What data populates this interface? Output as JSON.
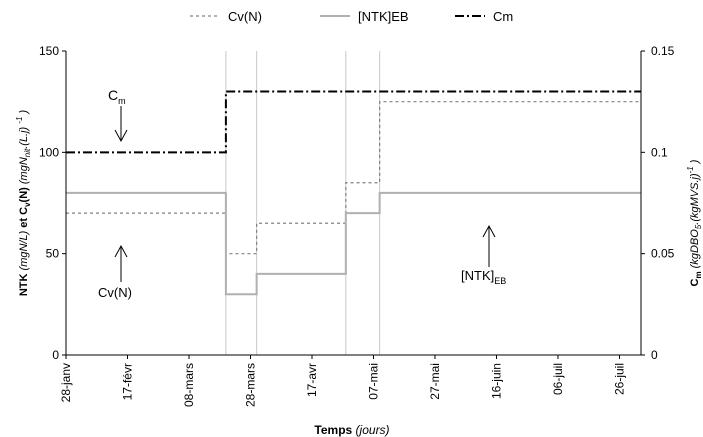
{
  "chart_data": {
    "type": "line",
    "title": "",
    "x_categories": [
      "28-janv",
      "17-févr",
      "08-mars",
      "28-mars",
      "17-avr",
      "07-mai",
      "27-mai",
      "16-juin",
      "06-juil",
      "26-juil"
    ],
    "xlabel": {
      "main": "Temps",
      "italic": "(jours)"
    },
    "ylabel_left": {
      "bold1": "NTK",
      "it1": "(mgN/L)",
      "bold2": "et C",
      "sub": "v",
      "bold3": "(N)",
      "it2": "(mgN",
      "sub2": "nit",
      "it3": ".(L.j)",
      "sup": "-1",
      "it4": ")"
    },
    "ylabel_right": {
      "bold": "C",
      "sub": "m",
      "it1": "(kgDBO",
      "sub2": "5",
      "it2": ".(kgMVS.j)",
      "sup": "-1",
      "it3": ")"
    },
    "ylim_left": [
      0,
      150
    ],
    "yticks_left": [
      "0",
      "50",
      "100",
      "150"
    ],
    "ylim_right": [
      0,
      0.15
    ],
    "yticks_right": [
      "0",
      "0.05",
      "0.1",
      "0.15"
    ],
    "legend": {
      "position": "top",
      "entries": [
        {
          "label": "Cv(N)",
          "style": "dashed",
          "color": "#808080"
        },
        {
          "label": "[NTK]EB",
          "style": "solid",
          "color": "#b0b0b0"
        },
        {
          "label": "Cm",
          "style": "dashdot",
          "color": "#000000"
        }
      ]
    },
    "series": [
      {
        "name": "Cv(N)",
        "axis": "left",
        "steps": [
          {
            "from": "28-janv",
            "to": "20-mars",
            "y": 70
          },
          {
            "from": "20-mars",
            "to": "30-mars",
            "y": 50
          },
          {
            "from": "30-mars",
            "to": "28-avr",
            "y": 65
          },
          {
            "from": "28-avr",
            "to": "09-mai",
            "y": 85
          },
          {
            "from": "09-mai",
            "to": "02-août",
            "y": 125
          }
        ]
      },
      {
        "name": "[NTK]EB",
        "axis": "left",
        "steps": [
          {
            "from": "28-janv",
            "to": "20-mars",
            "y": 80
          },
          {
            "from": "20-mars",
            "to": "30-mars",
            "y": 30
          },
          {
            "from": "30-mars",
            "to": "28-avr",
            "y": 40
          },
          {
            "from": "28-avr",
            "to": "09-mai",
            "y": 70
          },
          {
            "from": "09-mai",
            "to": "02-août",
            "y": 80
          }
        ]
      },
      {
        "name": "Cm",
        "axis": "right",
        "steps": [
          {
            "from": "28-janv",
            "to": "20-mars",
            "y": 0.1
          },
          {
            "from": "20-mars",
            "to": "02-août",
            "y": 0.13
          }
        ]
      }
    ],
    "period_boundaries": [
      "20-mars",
      "30-mars",
      "28-avr",
      "09-mai"
    ],
    "annotations": [
      {
        "text": "C",
        "sub": "m",
        "target": "Cm"
      },
      {
        "text": "Cv(N)",
        "sub": "",
        "target": "Cv(N)"
      },
      {
        "text": "[NTK]",
        "sub": "EB",
        "target": "[NTK]EB"
      }
    ]
  }
}
